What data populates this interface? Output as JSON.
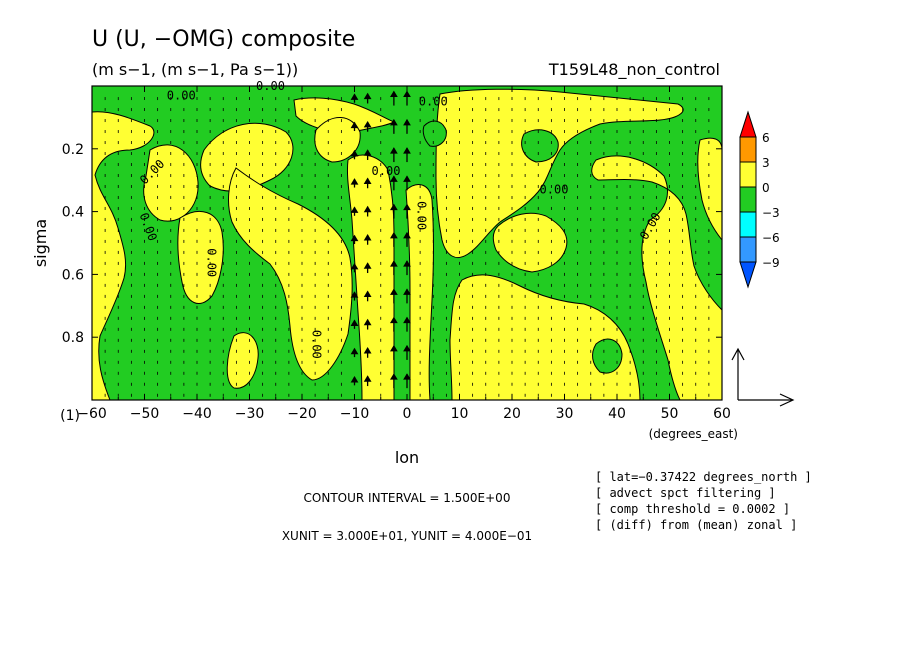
{
  "chart_data": {
    "type": "heatmap",
    "title": "U (U, −OMG) composite",
    "subtitle": "(m s−1, (m s−1, Pa s−1))",
    "run_label": "T159L48_non_control",
    "xlabel": "lon",
    "x_unit_label": "(degrees_east)",
    "ylabel": "sigma",
    "panel_label": "(1)",
    "xlim": [
      -60,
      60
    ],
    "ylim": [
      1.0,
      0.0
    ],
    "x_ticks": [
      "−60",
      "−50",
      "−40",
      "−30",
      "−20",
      "−10",
      "0",
      "10",
      "20",
      "30",
      "40",
      "50",
      "60"
    ],
    "x_tick_values": [
      -60,
      -50,
      -40,
      -30,
      -20,
      -10,
      0,
      10,
      20,
      30,
      40,
      50,
      60
    ],
    "y_ticks": [
      "0.2",
      "0.4",
      "0.6",
      "0.8"
    ],
    "y_tick_values": [
      0.2,
      0.4,
      0.6,
      0.8
    ],
    "contour_labels": [
      "0.00",
      "0.00",
      "0.00",
      "0.00",
      "0.00",
      "0.00",
      "0.00",
      "0.00",
      "0.00",
      "0.00",
      "0.00"
    ],
    "colorbar": {
      "labels": [
        "6",
        "3",
        "0",
        "−3",
        "−6",
        "−9"
      ],
      "colors": [
        "#ff0000",
        "#ff9900",
        "#ffff33",
        "#22cc22",
        "#00ffff",
        "#3399ff",
        "#0055ff"
      ]
    },
    "vector_reference": {
      "xunit": 30.0,
      "yunit": 0.4
    },
    "footer": {
      "contour_interval": "CONTOUR INTERVAL = 1.500E+00",
      "units": "XUNIT = 3.000E+01, YUNIT = 4.000E−01"
    },
    "notes": [
      "[ lat=−0.37422 degrees_north ]",
      "[ advect spct filtering ]",
      "[ comp threshold = 0.0002 ]",
      "[ (diff) from (mean) zonal ]"
    ],
    "colors": {
      "positive": "#ffff33",
      "negative": "#22cc22",
      "background": "#ffffff"
    }
  }
}
